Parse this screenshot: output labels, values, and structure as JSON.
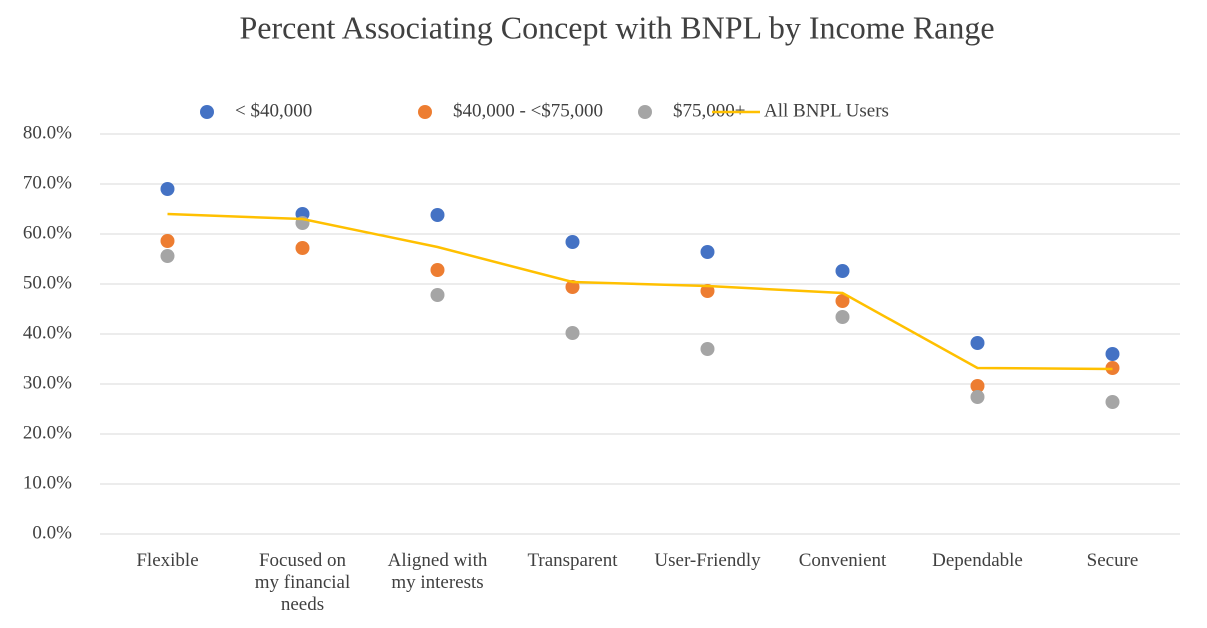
{
  "chart_data": {
    "type": "line",
    "title": "Percent Associating Concept with BNPL by Income Range",
    "categories": [
      "Flexible",
      "Focused on my financial needs",
      "Aligned with my interests",
      "Transparent",
      "User-Friendly",
      "Convenient",
      "Dependable",
      "Secure"
    ],
    "series": [
      {
        "name": "< $40,000",
        "color": "#4472c4",
        "style": "markers",
        "values": [
          69,
          64,
          63.8,
          58.4,
          56.4,
          52.6,
          38.2,
          36
        ]
      },
      {
        "name": "$40,000 - <$75,000",
        "color": "#ed7d31",
        "style": "markers",
        "values": [
          58.6,
          57.2,
          52.8,
          49.4,
          48.6,
          46.6,
          29.6,
          33.2
        ]
      },
      {
        "name": "$75,000+",
        "color": "#a5a5a5",
        "style": "markers",
        "values": [
          55.6,
          62.2,
          47.8,
          40.2,
          37,
          43.4,
          27.4,
          26.4
        ]
      },
      {
        "name": "All BNPL Users",
        "color": "#ffc000",
        "style": "line",
        "values": [
          64,
          63,
          57.4,
          50.4,
          49.6,
          48.2,
          33.2,
          33
        ]
      }
    ],
    "ylim": [
      0,
      80
    ],
    "yticks": [
      {
        "value": 0,
        "label": "0.0%"
      },
      {
        "value": 10,
        "label": "10.0%"
      },
      {
        "value": 20,
        "label": "20.0%"
      },
      {
        "value": 30,
        "label": "30.0%"
      },
      {
        "value": 40,
        "label": "40.0%"
      },
      {
        "value": 50,
        "label": "50.0%"
      },
      {
        "value": 60,
        "label": "60.0%"
      },
      {
        "value": 70,
        "label": "70.0%"
      },
      {
        "value": 80,
        "label": "80.0%"
      }
    ],
    "grid": true,
    "legend": "top"
  }
}
